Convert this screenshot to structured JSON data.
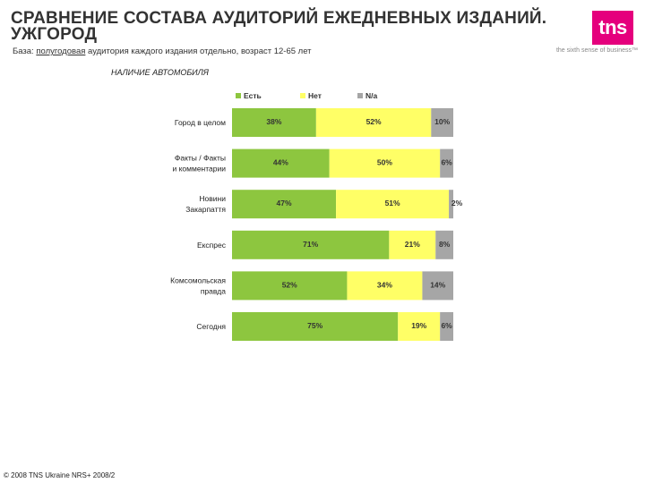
{
  "header": {
    "title_line1": "СРАВНЕНИЕ СОСТАВА АУДИТОРИЙ ЕЖЕДНЕВНЫХ ИЗДАНИЙ.",
    "title_line2": "УЖГОРОД",
    "base_prefix": "База: ",
    "base_underlined": "полугодовая",
    "base_rest": " аудитория каждого издания отдельно, возраст 12-65 лет"
  },
  "logo": {
    "text": "tns",
    "slogan": "the sixth sense of business™",
    "brand_color": "#e5007d"
  },
  "footer": "© 2008 TNS Ukraine  NRS+ 2008/2",
  "chart_data": {
    "type": "bar",
    "orientation": "horizontal",
    "stacked": true,
    "percent_stacked": true,
    "title": "НАЛИЧИЕ АВТОМОБИЛЯ",
    "legend_position": "top",
    "grid": false,
    "xlim": [
      0,
      100
    ],
    "categories": [
      [
        "Город в целом"
      ],
      [
        "Факты / Факты",
        "и комментарии"
      ],
      [
        "Новини",
        "Закарпаття"
      ],
      [
        "Експрес"
      ],
      [
        "Комсомольская",
        "правда"
      ],
      [
        "Сегодня"
      ]
    ],
    "series": [
      {
        "name": "Есть",
        "color": "#8dc63f",
        "values": [
          38,
          44,
          47,
          71,
          52,
          75
        ],
        "labels": [
          "38%",
          "44%",
          "47%",
          "71%",
          "52%",
          "75%"
        ]
      },
      {
        "name": "Нет",
        "color": "#ffff66",
        "values": [
          52,
          50,
          51,
          21,
          34,
          19
        ],
        "labels": [
          "52%",
          "50%",
          "51%",
          "21%",
          "34%",
          "19%"
        ]
      },
      {
        "name": "N/a",
        "color": "#a6a6a6",
        "values": [
          10,
          6,
          2,
          8,
          14,
          6
        ],
        "labels": [
          "10%",
          "6%",
          "2%",
          "8%",
          "14%",
          "6%"
        ]
      }
    ]
  }
}
